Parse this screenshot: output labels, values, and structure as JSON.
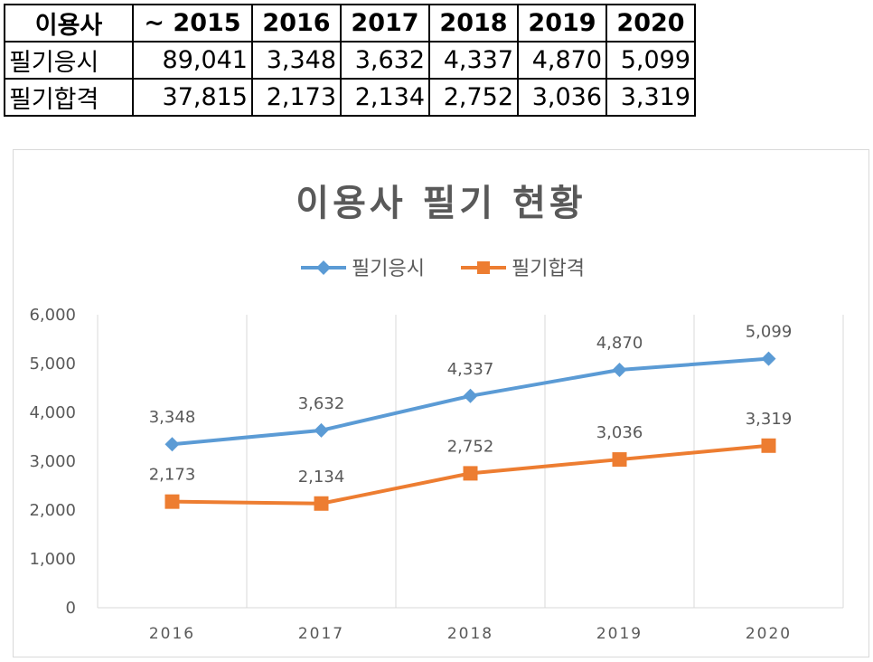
{
  "table": {
    "headers": [
      "이용사",
      "~ 2015",
      "2016",
      "2017",
      "2018",
      "2019",
      "2020"
    ],
    "rows": [
      {
        "label": "필기응시",
        "values": [
          "89,041",
          "3,348",
          "3,632",
          "4,337",
          "4,870",
          "5,099"
        ]
      },
      {
        "label": "필기합격",
        "values": [
          "37,815",
          "2,173",
          "2,134",
          "2,752",
          "3,036",
          "3,319"
        ]
      }
    ]
  },
  "chart_data": {
    "type": "line",
    "title": "이용사 필기 현황",
    "categories": [
      "2016",
      "2017",
      "2018",
      "2019",
      "2020"
    ],
    "series": [
      {
        "name": "필기응시",
        "values": [
          3348,
          3632,
          4337,
          4870,
          5099
        ],
        "labels": [
          "3,348",
          "3,632",
          "4,337",
          "4,870",
          "5,099"
        ],
        "color": "#5b9bd5",
        "marker": "diamond"
      },
      {
        "name": "필기합격",
        "values": [
          2173,
          2134,
          2752,
          3036,
          3319
        ],
        "labels": [
          "2,173",
          "2,134",
          "2,752",
          "3,036",
          "3,319"
        ],
        "color": "#ed7d31",
        "marker": "square"
      }
    ],
    "ylim": [
      0,
      6000
    ],
    "yticks": [
      0,
      1000,
      2000,
      3000,
      4000,
      5000,
      6000
    ],
    "ytick_labels": [
      "0",
      "1,000",
      "2,000",
      "3,000",
      "4,000",
      "5,000",
      "6,000"
    ],
    "grid": "vertical",
    "legend": "top",
    "data_labels": true
  }
}
